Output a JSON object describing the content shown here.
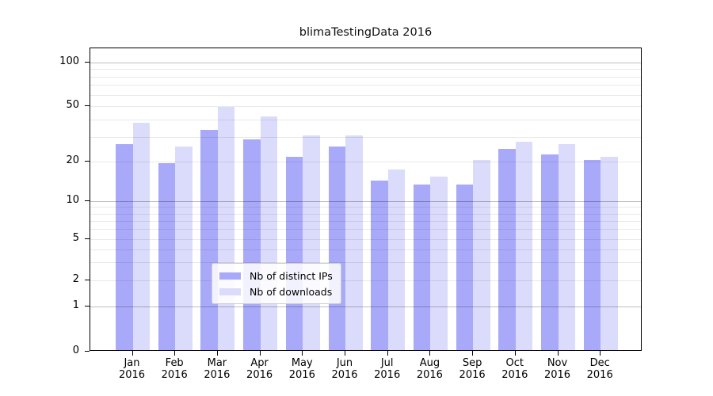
{
  "title": "blimaTestingData 2016",
  "chart_data": {
    "type": "bar",
    "title": "blimaTestingData 2016",
    "months": [
      "Jan",
      "Feb",
      "Mar",
      "Apr",
      "May",
      "Jun",
      "Jul",
      "Aug",
      "Sep",
      "Oct",
      "Nov",
      "Dec"
    ],
    "year": "2016",
    "categories": [
      "Jan 2016",
      "Feb 2016",
      "Mar 2016",
      "Apr 2016",
      "May 2016",
      "Jun 2016",
      "Jul 2016",
      "Aug 2016",
      "Sep 2016",
      "Oct 2016",
      "Nov 2016",
      "Dec 2016"
    ],
    "series": [
      {
        "name": "Nb of distinct IPs",
        "color": "#a9a9f9",
        "values": [
          26,
          19,
          33,
          28,
          21,
          25,
          14,
          13,
          13,
          24,
          22,
          20
        ]
      },
      {
        "name": "Nb of downloads",
        "color": "#dbdbfb",
        "values": [
          37,
          25,
          48,
          41,
          30,
          30,
          17,
          15,
          20,
          27,
          26,
          21
        ]
      }
    ],
    "yscale": "log",
    "yticks": [
      0,
      1,
      2,
      5,
      10,
      20,
      50,
      100
    ],
    "ylim": [
      0,
      128
    ],
    "xlabel": "",
    "ylabel": "",
    "grid": true,
    "legend_position": "bottom-center"
  },
  "colors": {
    "bar_dark": "#a9a9f9",
    "bar_light": "#dbdbfb",
    "grid_major": "#c6c6c6",
    "grid_minor": "#eaeaea",
    "axis": "#000000"
  }
}
